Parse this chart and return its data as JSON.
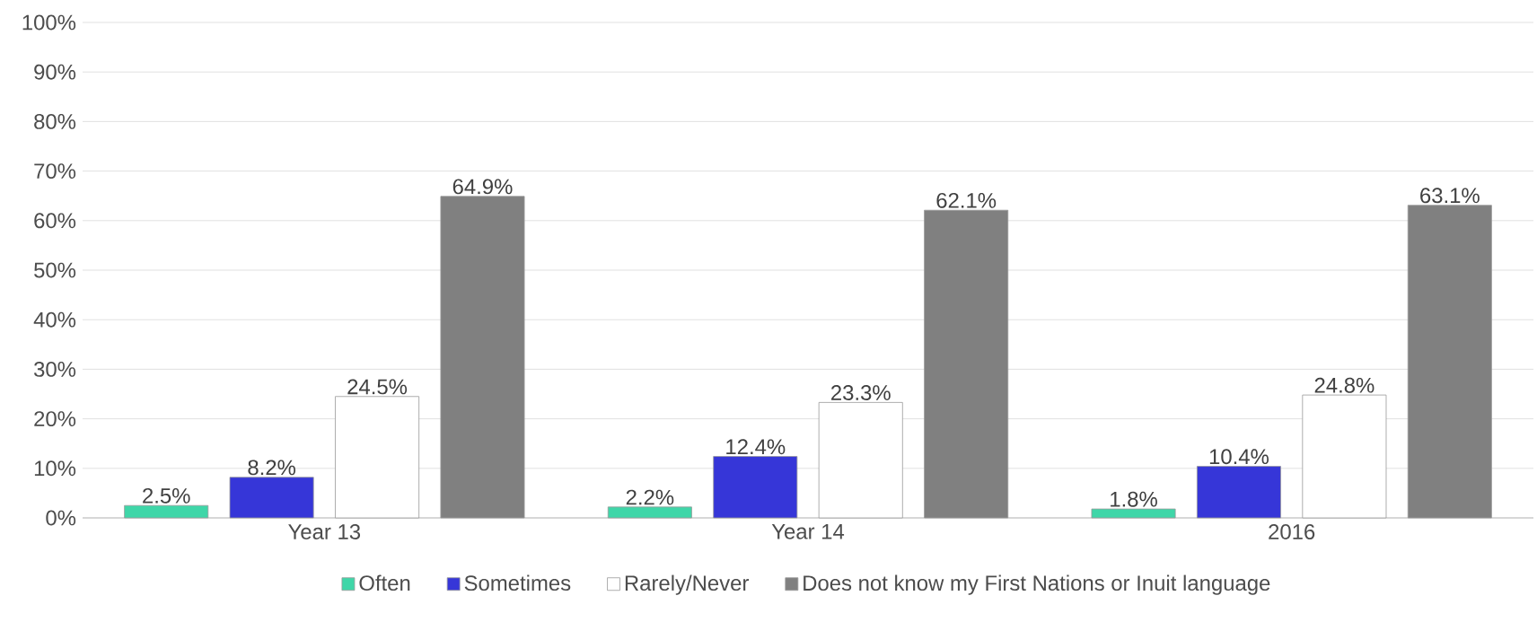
{
  "chart_data": {
    "type": "bar",
    "categories": [
      "Year 13",
      "Year 14",
      "2016"
    ],
    "series": [
      {
        "name": "Often",
        "color": "#3fd6a8",
        "values": [
          2.5,
          2.2,
          1.8
        ],
        "value_labels": [
          "2.5%",
          "2.2%",
          "1.8%"
        ]
      },
      {
        "name": "Sometimes",
        "color": "#3636d8",
        "values": [
          8.2,
          12.4,
          10.4
        ],
        "value_labels": [
          "8.2%",
          "12.4%",
          "10.4%"
        ]
      },
      {
        "name": "Rarely/Never",
        "color": "#ffffff",
        "values": [
          24.5,
          23.3,
          24.8
        ],
        "value_labels": [
          "24.5%",
          "23.3%",
          "24.8%"
        ]
      },
      {
        "name": "Does not know my First Nations or Inuit language",
        "color": "#808080",
        "values": [
          64.9,
          62.1,
          63.1
        ],
        "value_labels": [
          "64.9%",
          "62.1%",
          "63.1%"
        ]
      }
    ],
    "ylim": [
      0,
      100
    ],
    "yticks": [
      {
        "value": 0,
        "label": "0%"
      },
      {
        "value": 10,
        "label": "10%"
      },
      {
        "value": 20,
        "label": "20%"
      },
      {
        "value": 30,
        "label": "30%"
      },
      {
        "value": 40,
        "label": "40%"
      },
      {
        "value": 50,
        "label": "50%"
      },
      {
        "value": 60,
        "label": "60%"
      },
      {
        "value": 70,
        "label": "70%"
      },
      {
        "value": 80,
        "label": "80%"
      },
      {
        "value": 90,
        "label": "90%"
      },
      {
        "value": 100,
        "label": "100%"
      }
    ],
    "grid": "y",
    "legend": "bottom"
  }
}
